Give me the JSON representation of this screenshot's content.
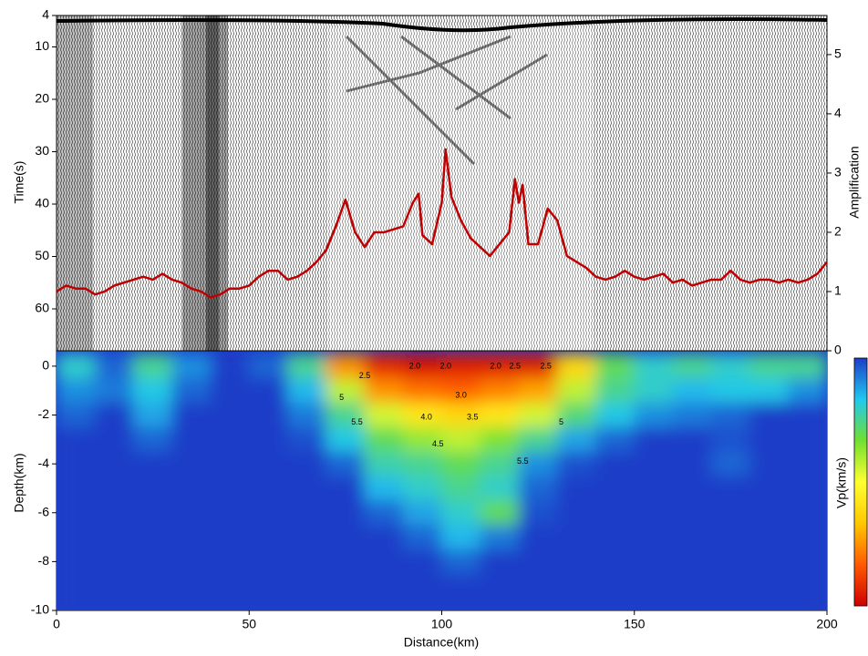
{
  "chart_data": [
    {
      "type": "line",
      "ylabel": "Time(s)",
      "y2label": "Amplification",
      "xlim": [
        0,
        200
      ],
      "ylim": [
        4,
        68
      ],
      "invert_y": true,
      "yticks": [
        4,
        10,
        20,
        30,
        40,
        50,
        60
      ],
      "y2lim": [
        0,
        5.66
      ],
      "y2ticks": [
        0,
        1,
        2,
        3,
        4,
        5
      ],
      "x": [
        0,
        2.5,
        5,
        7.5,
        10,
        12.5,
        15,
        17.5,
        20,
        22.5,
        25,
        27.5,
        30,
        32.5,
        35,
        37.5,
        40,
        42.5,
        45,
        47.5,
        50,
        52.5,
        55,
        57.5,
        60,
        62.5,
        65,
        67.5,
        70,
        72.5,
        75,
        77.5,
        80,
        82.5,
        85,
        87.5,
        90,
        92.5,
        94,
        95,
        97.5,
        100,
        101,
        102.5,
        105,
        107.5,
        110,
        112.5,
        115,
        117.5,
        119,
        120,
        121,
        122.5,
        125,
        127.5,
        130,
        132.5,
        135,
        137.5,
        140,
        142.5,
        145,
        147.5,
        150,
        152.5,
        155,
        157.5,
        160,
        162.5,
        165,
        167.5,
        170,
        172.5,
        175,
        177.5,
        180,
        182.5,
        185,
        187.5,
        190,
        192.5,
        195,
        197.5,
        200
      ],
      "series": [
        {
          "color": "#c00000",
          "axis": "y2",
          "values": [
            1.0,
            1.1,
            1.05,
            1.05,
            0.95,
            1.0,
            1.1,
            1.15,
            1.2,
            1.25,
            1.2,
            1.3,
            1.2,
            1.15,
            1.05,
            1.0,
            0.9,
            0.95,
            1.05,
            1.05,
            1.1,
            1.25,
            1.35,
            1.35,
            1.2,
            1.25,
            1.35,
            1.5,
            1.7,
            2.1,
            2.55,
            2.0,
            1.75,
            2.0,
            2.0,
            2.05,
            2.1,
            2.5,
            2.65,
            1.95,
            1.8,
            2.5,
            3.4,
            2.6,
            2.2,
            1.9,
            1.75,
            1.6,
            1.8,
            2.0,
            2.9,
            2.5,
            2.8,
            1.8,
            1.8,
            2.4,
            2.2,
            1.6,
            1.5,
            1.4,
            1.25,
            1.2,
            1.25,
            1.35,
            1.25,
            1.2,
            1.25,
            1.3,
            1.15,
            1.2,
            1.1,
            1.15,
            1.2,
            1.2,
            1.35,
            1.2,
            1.15,
            1.2,
            1.2,
            1.15,
            1.2,
            1.15,
            1.2,
            1.3,
            1.5
          ]
        }
      ]
    },
    {
      "type": "heatmap",
      "xlabel": "Distance(km)",
      "ylabel": "Depth(km)",
      "colorbar_label": "Vp(km/s)",
      "xlim": [
        0,
        200
      ],
      "ylim": [
        -10,
        0.63
      ],
      "xticks": [
        0,
        50,
        100,
        150,
        200
      ],
      "yticks": [
        -10,
        -8,
        -6,
        -4,
        -2,
        0
      ],
      "zlim": [
        2,
        6
      ],
      "colorscale": [
        "#d00000",
        "#ff5a00",
        "#ffc800",
        "#ffff30",
        "#70e030",
        "#20c8f0",
        "#1e3cc8"
      ],
      "x": [
        5,
        15,
        25,
        35,
        45,
        55,
        65,
        75,
        85,
        95,
        105,
        115,
        125,
        135,
        145,
        155,
        165,
        175,
        185,
        195
      ],
      "y": [
        0,
        -1,
        -2,
        -3,
        -4,
        -5,
        -6,
        -7,
        -8,
        -9,
        -10
      ],
      "z": [
        [
          5.2,
          5.8,
          5.0,
          5.6,
          6.0,
          5.8,
          5.0,
          3.0,
          2.3,
          2.1,
          2.2,
          2.2,
          2.2,
          3.5,
          4.8,
          5.2,
          5.0,
          5.2,
          5.0,
          5.0
        ],
        [
          5.6,
          5.7,
          5.3,
          5.8,
          6.0,
          6.0,
          5.4,
          4.3,
          3.0,
          2.8,
          2.7,
          2.9,
          3.1,
          4.3,
          5.0,
          5.2,
          5.4,
          5.3,
          5.3,
          5.6
        ],
        [
          5.8,
          6.0,
          5.5,
          6.0,
          6.0,
          6.0,
          5.7,
          5.0,
          4.2,
          3.7,
          3.5,
          3.7,
          4.2,
          4.9,
          5.3,
          5.6,
          5.7,
          5.8,
          6.0,
          6.0
        ],
        [
          6,
          6,
          5.8,
          6,
          6,
          6,
          5.9,
          5.3,
          4.8,
          4.5,
          4.3,
          4.6,
          5.0,
          5.5,
          5.8,
          6,
          6,
          5.9,
          6,
          6
        ],
        [
          6,
          6,
          6,
          6,
          6,
          6,
          6,
          5.8,
          5.1,
          5.0,
          4.8,
          5.0,
          5.6,
          5.9,
          6,
          6,
          6,
          5.8,
          6,
          6
        ],
        [
          6,
          6,
          6,
          6,
          6,
          6,
          6,
          6,
          5.4,
          5.2,
          5.0,
          5.2,
          5.8,
          6,
          6,
          6,
          6,
          6,
          6,
          6
        ],
        [
          6,
          6,
          6,
          6,
          6,
          6,
          6,
          6,
          5.8,
          5.5,
          5.2,
          4.8,
          5.9,
          6,
          6,
          6,
          6,
          6,
          6,
          6
        ],
        [
          6,
          6,
          6,
          6,
          6,
          6,
          6,
          6,
          6,
          5.8,
          5.4,
          5.7,
          6,
          6,
          6,
          6,
          6,
          6,
          6,
          6
        ],
        [
          6,
          6,
          6,
          6,
          6,
          6,
          6,
          6,
          6,
          6,
          5.8,
          6,
          6,
          6,
          6,
          6,
          6,
          6,
          6,
          6
        ],
        [
          6,
          6,
          6,
          6,
          6,
          6,
          6,
          6,
          6,
          6,
          6,
          6,
          6,
          6,
          6,
          6,
          6,
          6,
          6,
          6
        ],
        [
          6,
          6,
          6,
          6,
          6,
          6,
          6,
          6,
          6,
          6,
          6,
          6,
          6,
          6,
          6,
          6,
          6,
          6,
          6,
          6
        ]
      ],
      "annotations": [
        {
          "text": "2.5",
          "x": 80,
          "y": -0.4
        },
        {
          "text": "2.0",
          "x": 93,
          "y": 0
        },
        {
          "text": "2.0",
          "x": 101,
          "y": 0
        },
        {
          "text": "2.0",
          "x": 114,
          "y": 0
        },
        {
          "text": "2.5",
          "x": 119,
          "y": 0
        },
        {
          "text": "2.5",
          "x": 127,
          "y": 0
        },
        {
          "text": "3.0",
          "x": 105,
          "y": -1.2
        },
        {
          "text": "4.0",
          "x": 96,
          "y": -2.1
        },
        {
          "text": "3.5",
          "x": 108,
          "y": -2.1
        },
        {
          "text": "4.5",
          "x": 99,
          "y": -3.2
        },
        {
          "text": "5",
          "x": 74,
          "y": -1.3
        },
        {
          "text": "5.5",
          "x": 78,
          "y": -2.3
        },
        {
          "text": "5",
          "x": 131,
          "y": -2.3
        },
        {
          "text": "5.5",
          "x": 121,
          "y": -3.9
        }
      ]
    }
  ]
}
